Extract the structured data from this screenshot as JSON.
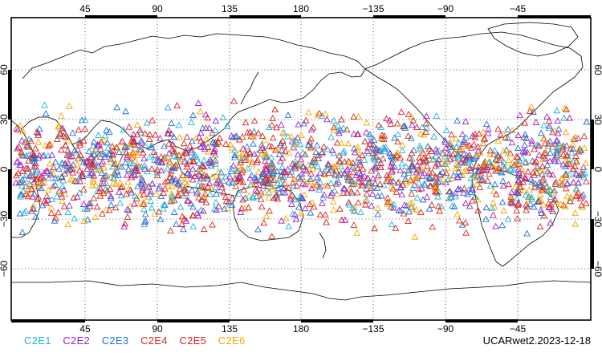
{
  "map": {
    "projection": "cylindrical",
    "lon_center": 180,
    "lat_range": [
      -90,
      90
    ],
    "lon_tick_labels": [
      "45",
      "90",
      "135",
      "180",
      "−135",
      "−90",
      "−45"
    ],
    "lat_tick_labels": [
      "60",
      "30",
      "0",
      "−30",
      "−60"
    ],
    "gridlines": true,
    "coastline_color": "#000000"
  },
  "legend": {
    "items": [
      {
        "label": "C2E1",
        "color": "#1fb3d6"
      },
      {
        "label": "C2E2",
        "color": "#a020c8"
      },
      {
        "label": "C2E3",
        "color": "#1e6fd6"
      },
      {
        "label": "C2E4",
        "color": "#c8321e"
      },
      {
        "label": "C2E5",
        "color": "#e31a1c"
      },
      {
        "label": "C2E6",
        "color": "#f5a800"
      }
    ]
  },
  "footer": {
    "stamp": "UCARwet2.2023-12-18"
  },
  "observations": {
    "marker": "triangle-outline",
    "lat_band": [
      -45,
      45
    ],
    "density_note": ""
  }
}
